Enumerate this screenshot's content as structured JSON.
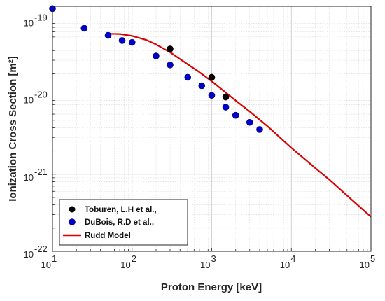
{
  "chart_data": {
    "type": "scatter",
    "xlabel": "Proton Energy [keV]",
    "ylabel": "Ionization Cross Section [m²]",
    "xscale": "log",
    "yscale": "log",
    "xlim": [
      10,
      100000
    ],
    "ylim": [
      1e-22,
      1.5e-19
    ],
    "grid": true,
    "minor_grid": true,
    "legend_position": "bottom-left",
    "x_ticks": [
      {
        "value": 10,
        "base": "10",
        "exp": "1"
      },
      {
        "value": 100,
        "base": "10",
        "exp": "2"
      },
      {
        "value": 1000,
        "base": "10",
        "exp": "3"
      },
      {
        "value": 10000,
        "base": "10",
        "exp": "4"
      },
      {
        "value": 100000,
        "base": "10",
        "exp": "5"
      }
    ],
    "y_ticks": [
      {
        "value": 1e-22,
        "base": "10",
        "exp": "-22"
      },
      {
        "value": 1e-21,
        "base": "10",
        "exp": "-21"
      },
      {
        "value": 1e-20,
        "base": "10",
        "exp": "-20"
      },
      {
        "value": 1e-19,
        "base": "10",
        "exp": "-19"
      }
    ],
    "series": [
      {
        "name": "Toburen, L.H et al.,",
        "kind": "marker",
        "color": "#000000",
        "points": [
          [
            300,
            4.2e-20
          ],
          [
            1000,
            1.8e-20
          ],
          [
            1500,
            1e-20
          ]
        ]
      },
      {
        "name": "DuBois, R.D et al.,",
        "kind": "marker",
        "color": "#0000cc",
        "points": [
          [
            10,
            1.4e-19
          ],
          [
            25,
            7.8e-20
          ],
          [
            50,
            6.3e-20
          ],
          [
            75,
            5.4e-20
          ],
          [
            100,
            5.1e-20
          ],
          [
            200,
            3.4e-20
          ],
          [
            300,
            2.6e-20
          ],
          [
            500,
            1.8e-20
          ],
          [
            750,
            1.4e-20
          ],
          [
            1000,
            1.05e-20
          ],
          [
            1500,
            7.4e-21
          ],
          [
            2000,
            5.8e-21
          ],
          [
            3000,
            4.7e-21
          ],
          [
            4000,
            3.8e-21
          ]
        ]
      },
      {
        "name": "Rudd Model",
        "kind": "line",
        "color": "#dd0000",
        "points": [
          [
            50,
            6.6e-20
          ],
          [
            70,
            6.55e-20
          ],
          [
            100,
            6.2e-20
          ],
          [
            150,
            5.5e-20
          ],
          [
            200,
            4.8e-20
          ],
          [
            300,
            3.8e-20
          ],
          [
            500,
            2.65e-20
          ],
          [
            700,
            2.1e-20
          ],
          [
            1000,
            1.6e-20
          ],
          [
            2000,
            9e-21
          ],
          [
            3000,
            6.5e-21
          ],
          [
            5000,
            4.2e-21
          ],
          [
            10000,
            2.2e-21
          ],
          [
            20000,
            1.2e-21
          ],
          [
            30000,
            8.5e-22
          ],
          [
            50000,
            5.3e-22
          ],
          [
            100000,
            2.8e-22
          ]
        ]
      }
    ]
  }
}
